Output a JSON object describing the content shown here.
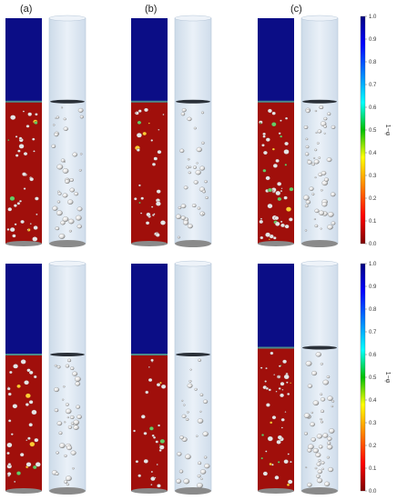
{
  "labels": {
    "a": "(a)",
    "b": "(b)",
    "c": "(c)"
  },
  "colorbar": {
    "title": "1−φ",
    "ticks": [
      "1.0",
      "0.9",
      "0.8",
      "0.7",
      "0.6",
      "0.5",
      "0.4",
      "0.3",
      "0.2",
      "0.1",
      "0.0"
    ],
    "colors": {
      "top": "#00007f",
      "blue": "#0000ff",
      "cyan": "#00ffff",
      "green": "#00c000",
      "yellow": "#ffff00",
      "orange": "#ff8000",
      "red": "#ff0000",
      "bottom": "#7f0000"
    }
  },
  "field_colors": {
    "gas": "#0b0d86",
    "liquid": "#a00f0b",
    "liquid_dark": "#7a0a08",
    "tube": "#dfe9f4",
    "tube_edge": "#b6c6d8",
    "bubble": "#f2f2f2",
    "bubble_shade": "#8c8c8c",
    "floor": "#8a8a8a"
  },
  "panels": [
    {
      "id": "top-a",
      "interface_level": 0.37,
      "bubble_count": 40
    },
    {
      "id": "top-b",
      "interface_level": 0.37,
      "bubble_count": 34
    },
    {
      "id": "top-c",
      "interface_level": 0.37,
      "bubble_count": 52
    },
    {
      "id": "bottom-a",
      "interface_level": 0.4,
      "bubble_count": 38
    },
    {
      "id": "bottom-b",
      "interface_level": 0.4,
      "bubble_count": 30
    },
    {
      "id": "bottom-c",
      "interface_level": 0.37,
      "bubble_count": 46
    }
  ]
}
